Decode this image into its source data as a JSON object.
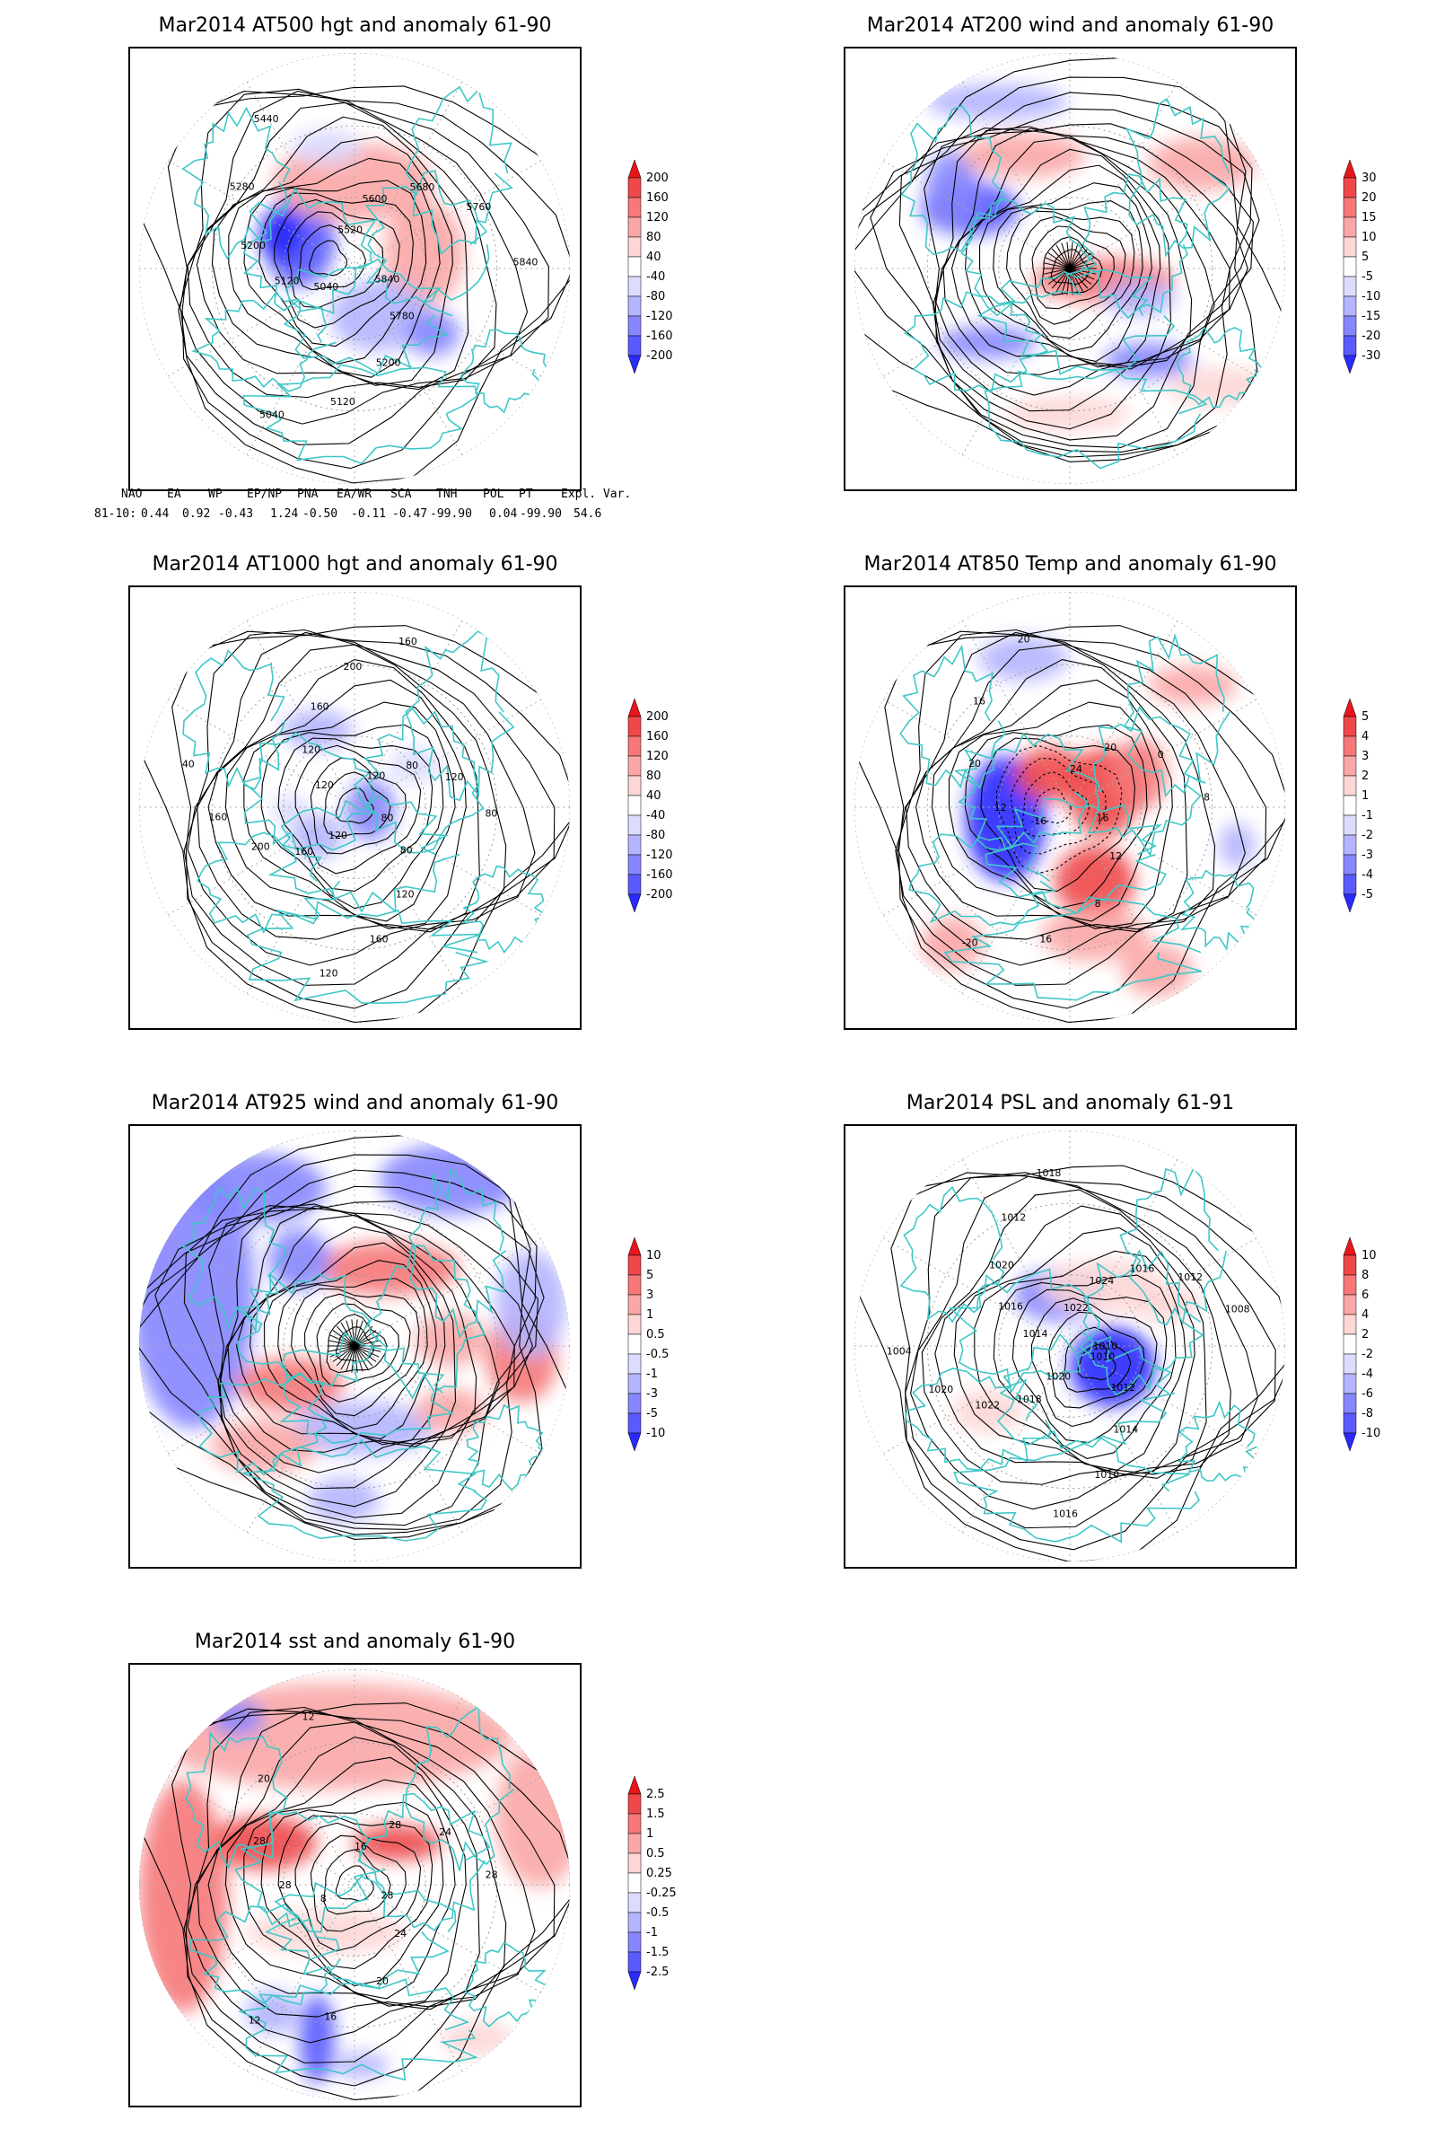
{
  "panels": [
    {
      "id": "p1",
      "title": "Mar2014 AT500 hgt and anomaly 61-90",
      "colorbar": {
        "labels": [
          "200",
          "160",
          "120",
          "80",
          "40",
          "-40",
          "-80",
          "-120",
          "-160",
          "-200"
        ]
      },
      "contour_labels": [
        "5840",
        "5780",
        "5200",
        "5120",
        "5040",
        "5040",
        "5120",
        "5200",
        "5280",
        "5440",
        "5520",
        "5600",
        "5680",
        "5760",
        "5840"
      ]
    },
    {
      "id": "p2",
      "title": "Mar2014 AT200 wind and anomaly 61-90",
      "colorbar": {
        "labels": [
          "30",
          "20",
          "15",
          "10",
          "5",
          "-5",
          "-10",
          "-15",
          "-20",
          "-30"
        ]
      },
      "contour_labels": []
    },
    {
      "id": "p3",
      "title": "Mar2014 AT1000 hgt and anomaly 61-90",
      "colorbar": {
        "labels": [
          "200",
          "160",
          "120",
          "80",
          "40",
          "-40",
          "-80",
          "-120",
          "-160",
          "-200"
        ]
      },
      "contour_labels": [
        "80",
        "80",
        "120",
        "160",
        "120",
        "120",
        "160",
        "200",
        "160",
        "40",
        "120",
        "120",
        "160",
        "200",
        "160",
        "120",
        "80",
        "120",
        "80"
      ]
    },
    {
      "id": "p4",
      "title": "Mar2014 AT850 Temp and anomaly 61-90",
      "colorbar": {
        "labels": [
          "5",
          "4",
          "3",
          "2",
          "1",
          "-1",
          "-2",
          "-3",
          "-4",
          "-5"
        ]
      },
      "contour_labels": [
        "16",
        "12",
        "8",
        "16",
        "-20",
        "-16",
        "12",
        "20",
        "16",
        "20",
        "24",
        "20",
        "0",
        "8"
      ]
    },
    {
      "id": "p5",
      "title": "Mar2014 AT925 wind and anomaly 61-90",
      "colorbar": {
        "labels": [
          "10",
          "5",
          "3",
          "1",
          "0.5",
          "-0.5",
          "-1",
          "-3",
          "-5",
          "-10"
        ]
      },
      "contour_labels": []
    },
    {
      "id": "p6",
      "title": "Mar2014 PSL and anomaly 61-91",
      "colorbar": {
        "labels": [
          "10",
          "8",
          "6",
          "4",
          "2",
          "-2",
          "-4",
          "-6",
          "-8",
          "-10"
        ]
      },
      "contour_labels": [
        "1010",
        "1012",
        "1014",
        "1010",
        "1016",
        "1020",
        "1018",
        "1022",
        "1020",
        "1004",
        "1014",
        "1016",
        "1020",
        "1012",
        "1018",
        "1022",
        "1024",
        "1016",
        "1012",
        "1008",
        "1010"
      ]
    },
    {
      "id": "p7",
      "title": "Mar2014 sst and anomaly 61-90",
      "colorbar": {
        "labels": [
          "2.5",
          "1.5",
          "1",
          "0.5",
          "0.25",
          "-0.25",
          "-0.5",
          "-1",
          "-1.5",
          "-2.5"
        ]
      },
      "contour_labels": [
        "28",
        "24",
        "20",
        "16",
        "12",
        "8",
        "28",
        "28",
        "20",
        "12",
        "16",
        "28",
        "24",
        "28"
      ]
    }
  ],
  "indices": {
    "headers": [
      "NAO",
      "EA",
      "WP",
      "EP/NP",
      "PNA",
      "EA/WR",
      "SCA",
      "TNH",
      "POL",
      "PT",
      "Expl. Var."
    ],
    "row_label": "81-10:",
    "values": [
      "0.44",
      "0.92",
      "-0.43",
      "1.24",
      "-0.50",
      "-0.11",
      "-0.47",
      "-99.90",
      "0.04",
      "-99.90",
      "54.6"
    ]
  },
  "colors": {
    "coast": "#3ec7c7",
    "red_scale": [
      "#e8151b",
      "#f0484a",
      "#f67879",
      "#fba7a7",
      "#fdd6d6"
    ],
    "blue_scale": [
      "#dcdcff",
      "#b4b4ff",
      "#8686ff",
      "#5a5aff",
      "#2a2aff"
    ],
    "contour": "#000000"
  }
}
